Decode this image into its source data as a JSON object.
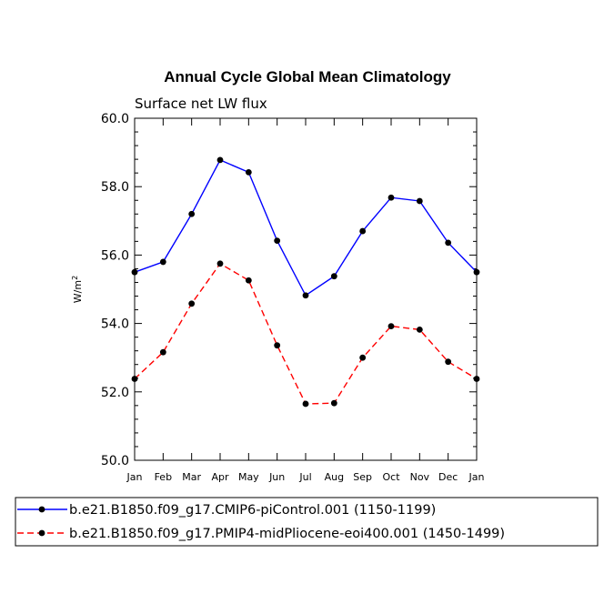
{
  "chart_data": {
    "type": "line",
    "title": "Annual Cycle Global Mean Climatology",
    "subtitle": "Surface net LW flux",
    "ylabel": "W/m",
    "ylabel_superscript": "2",
    "ylim": [
      50.0,
      60.0
    ],
    "yticks": [
      "50.0",
      "52.0",
      "54.0",
      "56.0",
      "58.0",
      "60.0"
    ],
    "categories": [
      "Jan",
      "Feb",
      "Mar",
      "Apr",
      "May",
      "Jun",
      "Jul",
      "Aug",
      "Sep",
      "Oct",
      "Nov",
      "Dec",
      "Jan"
    ],
    "grid": false,
    "legend_position": "bottom",
    "series": [
      {
        "name": "b.e21.B1850.f09_g17.CMIP6-piControl.001 (1150-1199)",
        "color": "#0000ff",
        "dash": "solid",
        "values": [
          55.5,
          55.8,
          57.2,
          58.78,
          58.42,
          56.42,
          54.82,
          55.38,
          56.7,
          57.68,
          57.58,
          56.36,
          55.5
        ]
      },
      {
        "name": "b.e21.B1850.f09_g17.PMIP4-midPliocene-eoi400.001 (1450-1499)",
        "color": "#ff0000",
        "dash": "dashed",
        "values": [
          52.38,
          53.16,
          54.58,
          55.75,
          55.26,
          53.36,
          51.65,
          51.67,
          53.0,
          53.92,
          53.82,
          52.88,
          52.38
        ]
      }
    ]
  }
}
